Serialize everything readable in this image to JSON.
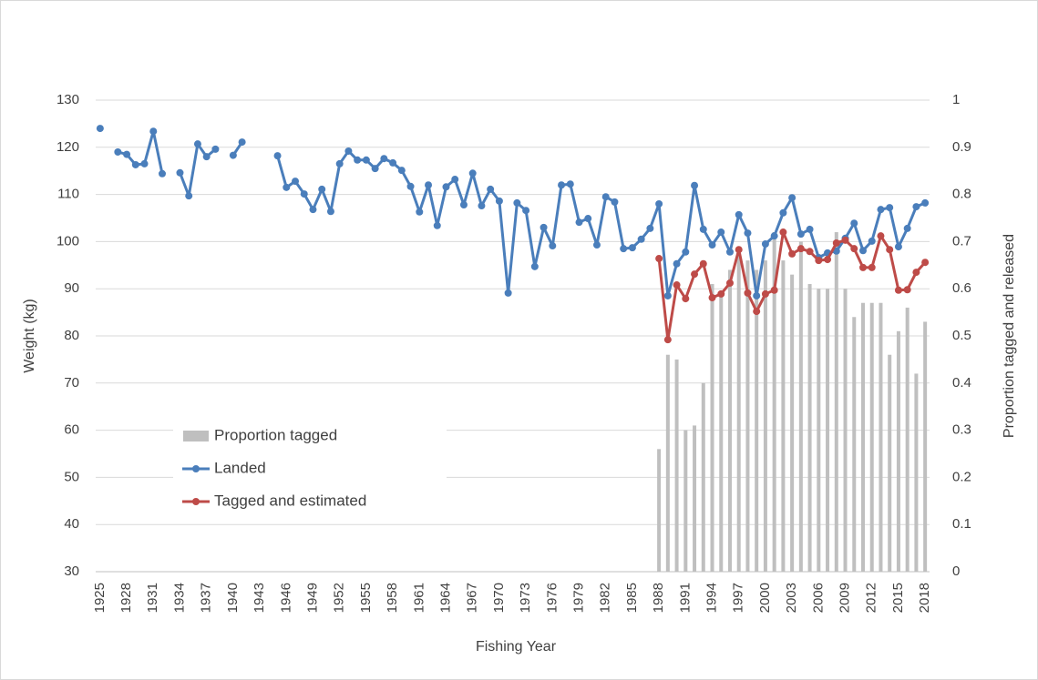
{
  "chart_data": {
    "type": "combo",
    "x_label": "Fishing Year",
    "y_label": "Weight (kg)",
    "y2_label": "Proportion tagged and released",
    "categories": [
      "1925",
      null,
      null,
      "1928",
      null,
      null,
      "1931",
      null,
      null,
      "1934",
      null,
      null,
      "1937",
      null,
      null,
      "1940",
      null,
      null,
      "1943",
      null,
      null,
      "1946",
      null,
      null,
      "1949",
      null,
      null,
      "1952",
      null,
      null,
      "1955",
      null,
      null,
      "1958",
      null,
      null,
      "1961",
      null,
      null,
      "1964",
      null,
      null,
      "1967",
      null,
      null,
      "1970",
      null,
      null,
      "1973",
      null,
      null,
      "1976",
      null,
      null,
      "1979",
      null,
      null,
      "1982",
      null,
      null,
      "1985",
      null,
      null,
      "1988",
      null,
      null,
      "1991",
      null,
      null,
      "1994",
      null,
      null,
      "1997",
      null,
      null,
      "2000",
      null,
      null,
      "2003",
      null,
      null,
      "2006",
      null,
      null,
      "2009",
      null,
      null,
      "2012",
      null,
      null,
      "2015",
      null,
      null,
      "2018"
    ],
    "series": [
      {
        "name": "Proportion tagged",
        "kind": "bar",
        "axis": "y2",
        "color": "#bfbfbf",
        "values": [
          null,
          null,
          null,
          null,
          null,
          null,
          null,
          null,
          null,
          null,
          null,
          null,
          null,
          null,
          null,
          null,
          null,
          null,
          null,
          null,
          null,
          null,
          null,
          null,
          null,
          null,
          null,
          null,
          null,
          null,
          null,
          null,
          null,
          null,
          null,
          null,
          null,
          null,
          null,
          null,
          null,
          null,
          null,
          null,
          null,
          null,
          null,
          null,
          null,
          null,
          null,
          null,
          null,
          null,
          null,
          null,
          null,
          null,
          null,
          null,
          null,
          null,
          null,
          0.26,
          0.46,
          0.45,
          0.3,
          0.31,
          0.4,
          0.61,
          0.59,
          0.64,
          0.68,
          0.66,
          0.64,
          0.66,
          0.72,
          0.66,
          0.63,
          0.7,
          0.61,
          0.6,
          0.6,
          0.72,
          0.6,
          0.54,
          0.57,
          0.57,
          0.57,
          0.46,
          0.51,
          0.56,
          0.42,
          0.53
        ]
      },
      {
        "name": "Landed",
        "kind": "line",
        "color": "#4a7ebb",
        "values": [
          124.0,
          null,
          119.0,
          118.5,
          116.3,
          116.5,
          123.4,
          114.4,
          null,
          114.6,
          109.7,
          120.7,
          118.0,
          119.6,
          null,
          118.3,
          121.1,
          null,
          null,
          null,
          118.2,
          111.5,
          112.8,
          110.1,
          106.8,
          111.1,
          106.4,
          116.5,
          119.2,
          117.3,
          117.3,
          115.5,
          117.6,
          116.7,
          115.1,
          111.7,
          106.3,
          112.0,
          103.4,
          111.6,
          113.2,
          107.8,
          114.5,
          107.6,
          111.1,
          108.6,
          89.1,
          108.2,
          106.6,
          94.7,
          103.0,
          99.1,
          112.0,
          112.2,
          104.1,
          104.9,
          99.3,
          109.5,
          108.4,
          98.5,
          98.7,
          100.5,
          102.8,
          108.0,
          88.5,
          95.3,
          97.8,
          111.9,
          102.6,
          99.3,
          102.0,
          97.8,
          105.7,
          101.8,
          88.5,
          99.5,
          101.2,
          106.1,
          109.3,
          101.6,
          102.6,
          96.6,
          97.6,
          98.0,
          100.7,
          103.9,
          98.1,
          100.1,
          106.8,
          107.2,
          98.9,
          102.8,
          107.4,
          108.2
        ]
      },
      {
        "name": "Tagged and estimated",
        "kind": "line",
        "color": "#be4b48",
        "values": [
          null,
          null,
          null,
          null,
          null,
          null,
          null,
          null,
          null,
          null,
          null,
          null,
          null,
          null,
          null,
          null,
          null,
          null,
          null,
          null,
          null,
          null,
          null,
          null,
          null,
          null,
          null,
          null,
          null,
          null,
          null,
          null,
          null,
          null,
          null,
          null,
          null,
          null,
          null,
          null,
          null,
          null,
          null,
          null,
          null,
          null,
          null,
          null,
          null,
          null,
          null,
          null,
          null,
          null,
          null,
          null,
          null,
          null,
          null,
          null,
          null,
          null,
          null,
          96.4,
          79.2,
          90.8,
          87.9,
          93.1,
          95.3,
          88.1,
          88.9,
          91.2,
          98.3,
          89.1,
          85.2,
          88.9,
          89.7,
          102.0,
          97.4,
          98.5,
          97.9,
          96.0,
          96.2,
          99.7,
          100.3,
          98.5,
          94.5,
          94.5,
          101.2,
          98.3,
          89.7,
          89.8,
          93.5,
          95.6
        ]
      }
    ],
    "ylim": [
      30,
      130
    ],
    "yticks": [
      30,
      40,
      50,
      60,
      70,
      80,
      90,
      100,
      110,
      120,
      130
    ],
    "y2lim": [
      0,
      1
    ],
    "y2ticks": [
      0,
      0.1,
      0.2,
      0.3,
      0.4,
      0.5,
      0.6,
      0.7,
      0.8,
      0.9,
      1
    ],
    "grid": true
  }
}
